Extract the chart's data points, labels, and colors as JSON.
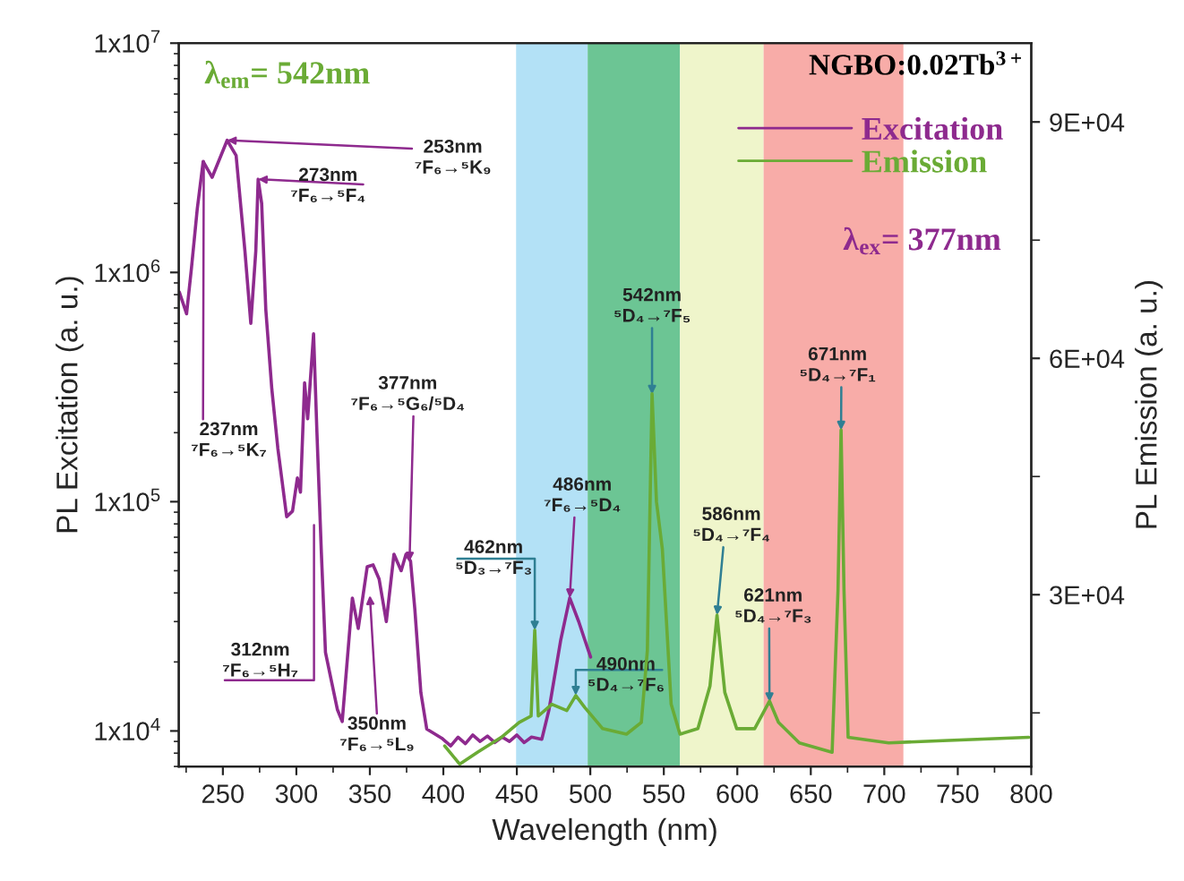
{
  "chart_data": {
    "type": "line",
    "xlabel": "Wavelength (nm)",
    "ylabel": "PL Excitation (a. u.)",
    "y2label": "PL Emission (a. u.)",
    "xlim": [
      220,
      800
    ],
    "xticks": [
      {
        "value": 225,
        "label": null
      },
      250,
      {
        "value": 275,
        "label": null
      },
      300,
      {
        "value": 325,
        "label": null
      },
      350,
      {
        "value": 375,
        "label": null
      },
      400,
      {
        "value": 425,
        "label": null
      },
      450,
      {
        "value": 475,
        "label": null
      },
      500,
      {
        "value": 525,
        "label": null
      },
      550,
      {
        "value": 575,
        "label": null
      },
      600,
      {
        "value": 625,
        "label": null
      },
      650,
      {
        "value": 675,
        "label": null
      },
      700,
      {
        "value": 725,
        "label": null
      },
      750,
      {
        "value": 775,
        "label": null
      },
      800
    ],
    "log": "y",
    "ylim": [
      7000,
      10000000
    ],
    "yticks": [
      {
        "value": 10000,
        "label": "1x10$^{4}$"
      },
      {
        "value": 100000,
        "label": "1x10$^{5}$"
      },
      {
        "value": 1000000,
        "label": "1x10$^{6}$"
      },
      {
        "value": 10000000,
        "label": "1x10$^{7}$"
      }
    ],
    "y2lim": [
      8200,
      100000
    ],
    "y2ticks": [
      {
        "value": 15000,
        "label": null
      },
      {
        "value": 30000,
        "label": "3E+04"
      },
      {
        "value": 45000,
        "label": null
      },
      {
        "value": 60000,
        "label": "6E+04"
      },
      {
        "value": 75000,
        "label": null
      },
      {
        "value": 90000,
        "label": "9E+04"
      }
    ],
    "grid": false,
    "legend": "top right",
    "series": [
      {
        "name": "Excitation",
        "color": "#8e2a8e",
        "x": [
          220.4,
          225.3,
          228.6,
          232.6,
          236.6,
          242.7,
          252.9,
          259,
          265,
          269,
          272.4,
          274,
          276.4,
          279.2,
          283.3,
          287.4,
          293.4,
          297.4,
          300.7,
          302.8,
          305.6,
          307.7,
          311.7,
          314,
          317,
          319.8,
          327.9,
          331.2,
          338.1,
          342.1,
          348.2,
          352.2,
          356.3,
          361.2,
          366.4,
          371.3,
          374.6,
          377.7,
          380.6,
          384.7,
          388.7,
          398.9,
          405,
          410,
          415,
          420,
          425,
          430,
          435,
          440,
          445,
          450,
          455,
          460,
          467,
          471.9,
          479.9,
          486,
          492.1,
          496.2,
          500.2
        ],
        "values": [
          820000,
          660000,
          1040000,
          1900000,
          3050000,
          2600000,
          3770000,
          3240000,
          1240000,
          600000,
          1240000,
          2550000,
          2000000,
          690000,
          310000,
          171000,
          86000,
          91000,
          127000,
          110000,
          330000,
          230000,
          540000,
          200000,
          60000,
          22000,
          12400,
          11000,
          38000,
          28000,
          52000,
          53000,
          46000,
          30000,
          59000,
          50000,
          59000,
          55000,
          34000,
          14700,
          10200,
          9300,
          8600,
          9400,
          8800,
          9600,
          9000,
          9500,
          8900,
          9400,
          9000,
          9600,
          8900,
          9400,
          9200,
          12400,
          25000,
          38000,
          30000,
          25000,
          21000
        ]
      },
      {
        "name": "Emission",
        "color": "#6aab35",
        "axis": "y2",
        "x": [
          400.9,
          411.1,
          423.2,
          439.4,
          451.6,
          459.7,
          462.2,
          464.6,
          473.8,
          484,
          490.1,
          496.2,
          508.4,
          524.6,
          534.7,
          538.8,
          542,
          545,
          549,
          555,
          561,
          573.2,
          581.4,
          586.2,
          591.5,
          599.6,
          611.8,
          621.9,
          628,
          642.2,
          664.5,
          668.5,
          670.6,
          672.6,
          675.4,
          703,
          743.6,
          798.3
        ],
        "values": [
          10800,
          8500,
          10000,
          11900,
          13800,
          14600,
          25500,
          14600,
          16100,
          15300,
          17200,
          15700,
          13000,
          12300,
          13800,
          22900,
          55500,
          41800,
          35800,
          16100,
          12300,
          13000,
          18400,
          27400,
          17600,
          13000,
          13000,
          16500,
          13800,
          11200,
          10000,
          30500,
          50900,
          30500,
          11900,
          11200,
          11500,
          11900
        ]
      }
    ],
    "bands": [
      {
        "axis": "x",
        "from": 449.5,
        "to": 498.2,
        "color": "#b3e1f6"
      },
      {
        "axis": "x",
        "from": 498.2,
        "to": 561,
        "color": "#6cc594"
      },
      {
        "axis": "x",
        "from": 561,
        "to": 617.9,
        "color": "#eff5cb"
      },
      {
        "axis": "x",
        "from": 617.9,
        "to": 713,
        "color": "#f8aca8"
      }
    ],
    "annotations": [
      "λ$_{em}$= 542nm",
      "NGBO:0.02Tb$^{3+}$",
      "λ$_{ex}$= 377nm",
      {
        "text": "253nm\n⁷F₆→⁵K₉",
        "x": 252.9,
        "y": 3770000
      },
      {
        "text": "273nm\n⁷F₆→⁵F₄",
        "x": 274,
        "y": 2550000
      },
      {
        "text": "237nm\n⁷F₆→⁵K₇",
        "x": 237,
        "y": 3050000
      },
      {
        "text": "312nm\n⁷F₆→⁵H₇",
        "x": 312,
        "y": 79000
      },
      {
        "text": "350nm\n⁷F₆→⁵L₉",
        "x": 350,
        "y": 39000
      },
      {
        "text": "377nm\n⁷F₆→⁵G₆/⁵D₄",
        "x": 377,
        "y": 55000
      },
      {
        "text": "486nm\n⁷F₆→⁵D₄",
        "x": 486,
        "y": 38000
      },
      {
        "text": "462nm\n⁵D₃→⁷F₃",
        "x": 462.2,
        "y": 27500
      },
      {
        "text": "490nm\n⁵D₄→⁷F₆",
        "x": 490.1,
        "y": 14300
      },
      {
        "text": "542nm\n⁵D₄→⁷F₅",
        "x": 542,
        "y": 294000
      },
      {
        "text": "586nm\n⁵D₄→⁷F₄",
        "x": 586.2,
        "y": 32000
      },
      {
        "text": "621nm\n⁵D₄→⁷F₃",
        "x": 621.9,
        "y": 13400
      },
      {
        "text": "671nm\n⁵D₄→⁷F₁",
        "x": 670.6,
        "y": 205000
      }
    ]
  }
}
